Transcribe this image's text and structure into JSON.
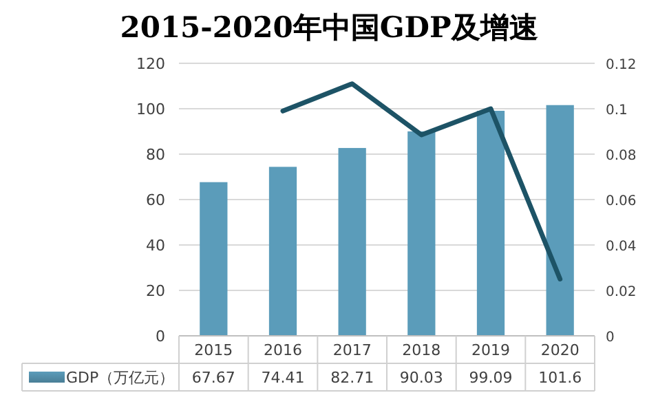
{
  "chart_data": {
    "type": "bar",
    "title": "2015-2020年中国GDP及增速",
    "categories": [
      "2015",
      "2016",
      "2017",
      "2018",
      "2019",
      "2020"
    ],
    "series": [
      {
        "name": "GDP（万亿元）",
        "color": "#5b9cba",
        "values": [
          67.67,
          74.41,
          82.71,
          90.03,
          99.09,
          101.6
        ],
        "value_labels": [
          "67.67",
          "74.41",
          "82.71",
          "90.03",
          "99.09",
          "101.6"
        ]
      },
      {
        "type": "line",
        "axis": "y2",
        "color": "#1d5366",
        "values": [
          null,
          0.099,
          0.111,
          0.0885,
          0.1,
          0.025
        ]
      }
    ],
    "ylim": [
      0,
      120
    ],
    "yticks": [
      0,
      20,
      40,
      60,
      80,
      100,
      120
    ],
    "y2lim": [
      0,
      0.12
    ],
    "y2ticks": [
      0,
      0.02,
      0.04,
      0.06,
      0.08,
      0.1,
      0.12
    ],
    "grid": "y",
    "legend": "bottom"
  }
}
